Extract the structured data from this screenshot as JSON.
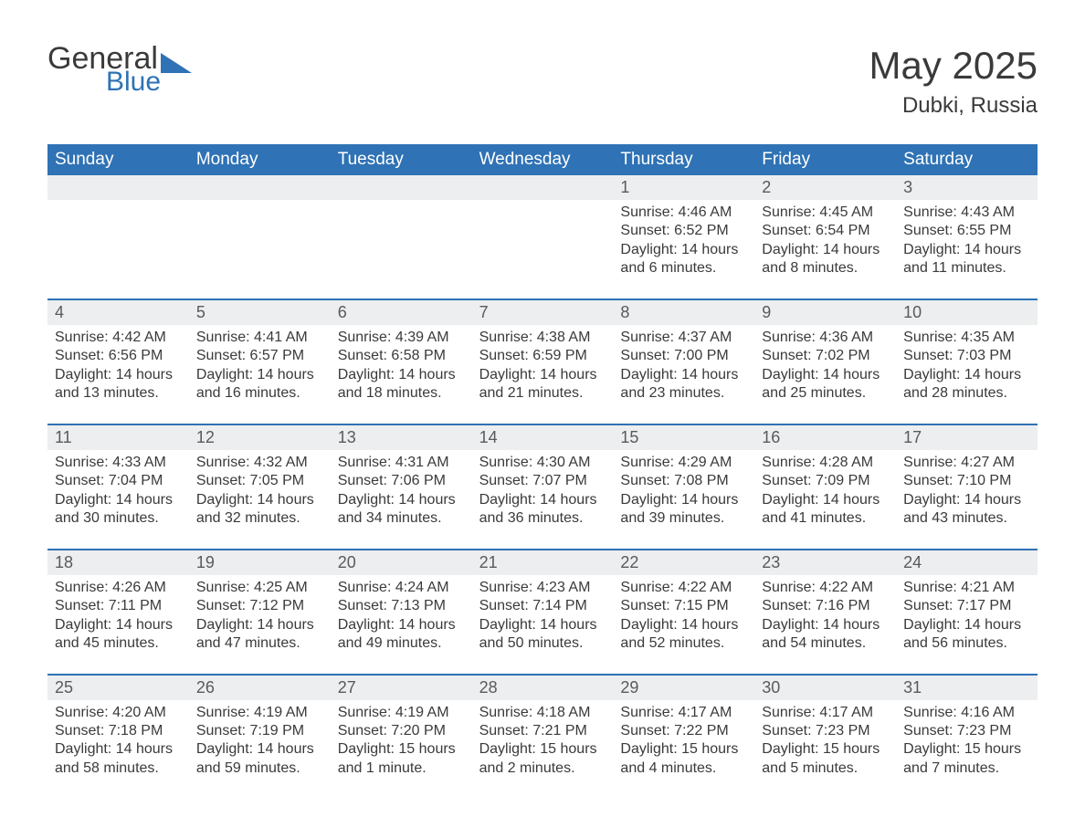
{
  "brand": {
    "line1": "General",
    "line2": "Blue",
    "icon_color": "#2f72b5",
    "text_color": "#3a3a3a"
  },
  "title": "May 2025",
  "location": "Dubki, Russia",
  "colors": {
    "header_bg": "#2f72b5",
    "header_text": "#ffffff",
    "daynum_bg": "#eceeef",
    "week_border": "#2f72b5",
    "body_text": "#3a3a3a",
    "background": "#ffffff"
  },
  "fonts": {
    "title_size": 42,
    "location_size": 24,
    "header_size": 19,
    "daynum_size": 18,
    "body_size": 16
  },
  "day_headers": [
    "Sunday",
    "Monday",
    "Tuesday",
    "Wednesday",
    "Thursday",
    "Friday",
    "Saturday"
  ],
  "weeks": [
    {
      "days": [
        null,
        null,
        null,
        null,
        {
          "n": "1",
          "sunrise": "Sunrise: 4:46 AM",
          "sunset": "Sunset: 6:52 PM",
          "daylight": "Daylight: 14 hours and 6 minutes."
        },
        {
          "n": "2",
          "sunrise": "Sunrise: 4:45 AM",
          "sunset": "Sunset: 6:54 PM",
          "daylight": "Daylight: 14 hours and 8 minutes."
        },
        {
          "n": "3",
          "sunrise": "Sunrise: 4:43 AM",
          "sunset": "Sunset: 6:55 PM",
          "daylight": "Daylight: 14 hours and 11 minutes."
        }
      ]
    },
    {
      "days": [
        {
          "n": "4",
          "sunrise": "Sunrise: 4:42 AM",
          "sunset": "Sunset: 6:56 PM",
          "daylight": "Daylight: 14 hours and 13 minutes."
        },
        {
          "n": "5",
          "sunrise": "Sunrise: 4:41 AM",
          "sunset": "Sunset: 6:57 PM",
          "daylight": "Daylight: 14 hours and 16 minutes."
        },
        {
          "n": "6",
          "sunrise": "Sunrise: 4:39 AM",
          "sunset": "Sunset: 6:58 PM",
          "daylight": "Daylight: 14 hours and 18 minutes."
        },
        {
          "n": "7",
          "sunrise": "Sunrise: 4:38 AM",
          "sunset": "Sunset: 6:59 PM",
          "daylight": "Daylight: 14 hours and 21 minutes."
        },
        {
          "n": "8",
          "sunrise": "Sunrise: 4:37 AM",
          "sunset": "Sunset: 7:00 PM",
          "daylight": "Daylight: 14 hours and 23 minutes."
        },
        {
          "n": "9",
          "sunrise": "Sunrise: 4:36 AM",
          "sunset": "Sunset: 7:02 PM",
          "daylight": "Daylight: 14 hours and 25 minutes."
        },
        {
          "n": "10",
          "sunrise": "Sunrise: 4:35 AM",
          "sunset": "Sunset: 7:03 PM",
          "daylight": "Daylight: 14 hours and 28 minutes."
        }
      ]
    },
    {
      "days": [
        {
          "n": "11",
          "sunrise": "Sunrise: 4:33 AM",
          "sunset": "Sunset: 7:04 PM",
          "daylight": "Daylight: 14 hours and 30 minutes."
        },
        {
          "n": "12",
          "sunrise": "Sunrise: 4:32 AM",
          "sunset": "Sunset: 7:05 PM",
          "daylight": "Daylight: 14 hours and 32 minutes."
        },
        {
          "n": "13",
          "sunrise": "Sunrise: 4:31 AM",
          "sunset": "Sunset: 7:06 PM",
          "daylight": "Daylight: 14 hours and 34 minutes."
        },
        {
          "n": "14",
          "sunrise": "Sunrise: 4:30 AM",
          "sunset": "Sunset: 7:07 PM",
          "daylight": "Daylight: 14 hours and 36 minutes."
        },
        {
          "n": "15",
          "sunrise": "Sunrise: 4:29 AM",
          "sunset": "Sunset: 7:08 PM",
          "daylight": "Daylight: 14 hours and 39 minutes."
        },
        {
          "n": "16",
          "sunrise": "Sunrise: 4:28 AM",
          "sunset": "Sunset: 7:09 PM",
          "daylight": "Daylight: 14 hours and 41 minutes."
        },
        {
          "n": "17",
          "sunrise": "Sunrise: 4:27 AM",
          "sunset": "Sunset: 7:10 PM",
          "daylight": "Daylight: 14 hours and 43 minutes."
        }
      ]
    },
    {
      "days": [
        {
          "n": "18",
          "sunrise": "Sunrise: 4:26 AM",
          "sunset": "Sunset: 7:11 PM",
          "daylight": "Daylight: 14 hours and 45 minutes."
        },
        {
          "n": "19",
          "sunrise": "Sunrise: 4:25 AM",
          "sunset": "Sunset: 7:12 PM",
          "daylight": "Daylight: 14 hours and 47 minutes."
        },
        {
          "n": "20",
          "sunrise": "Sunrise: 4:24 AM",
          "sunset": "Sunset: 7:13 PM",
          "daylight": "Daylight: 14 hours and 49 minutes."
        },
        {
          "n": "21",
          "sunrise": "Sunrise: 4:23 AM",
          "sunset": "Sunset: 7:14 PM",
          "daylight": "Daylight: 14 hours and 50 minutes."
        },
        {
          "n": "22",
          "sunrise": "Sunrise: 4:22 AM",
          "sunset": "Sunset: 7:15 PM",
          "daylight": "Daylight: 14 hours and 52 minutes."
        },
        {
          "n": "23",
          "sunrise": "Sunrise: 4:22 AM",
          "sunset": "Sunset: 7:16 PM",
          "daylight": "Daylight: 14 hours and 54 minutes."
        },
        {
          "n": "24",
          "sunrise": "Sunrise: 4:21 AM",
          "sunset": "Sunset: 7:17 PM",
          "daylight": "Daylight: 14 hours and 56 minutes."
        }
      ]
    },
    {
      "days": [
        {
          "n": "25",
          "sunrise": "Sunrise: 4:20 AM",
          "sunset": "Sunset: 7:18 PM",
          "daylight": "Daylight: 14 hours and 58 minutes."
        },
        {
          "n": "26",
          "sunrise": "Sunrise: 4:19 AM",
          "sunset": "Sunset: 7:19 PM",
          "daylight": "Daylight: 14 hours and 59 minutes."
        },
        {
          "n": "27",
          "sunrise": "Sunrise: 4:19 AM",
          "sunset": "Sunset: 7:20 PM",
          "daylight": "Daylight: 15 hours and 1 minute."
        },
        {
          "n": "28",
          "sunrise": "Sunrise: 4:18 AM",
          "sunset": "Sunset: 7:21 PM",
          "daylight": "Daylight: 15 hours and 2 minutes."
        },
        {
          "n": "29",
          "sunrise": "Sunrise: 4:17 AM",
          "sunset": "Sunset: 7:22 PM",
          "daylight": "Daylight: 15 hours and 4 minutes."
        },
        {
          "n": "30",
          "sunrise": "Sunrise: 4:17 AM",
          "sunset": "Sunset: 7:23 PM",
          "daylight": "Daylight: 15 hours and 5 minutes."
        },
        {
          "n": "31",
          "sunrise": "Sunrise: 4:16 AM",
          "sunset": "Sunset: 7:23 PM",
          "daylight": "Daylight: 15 hours and 7 minutes."
        }
      ]
    }
  ]
}
